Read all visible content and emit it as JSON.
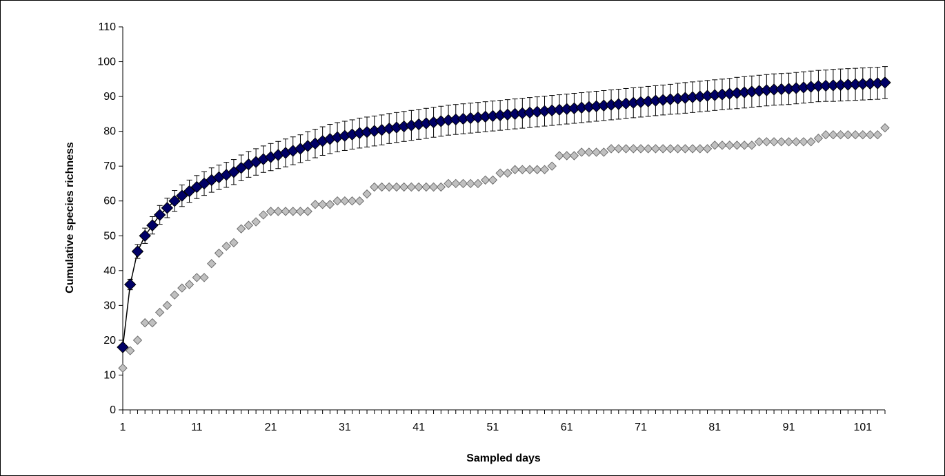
{
  "chart_data": {
    "type": "scatter",
    "xlabel": "Sampled days",
    "ylabel": "Cumulative species richness",
    "xlim": [
      1,
      104
    ],
    "ylim": [
      0,
      110
    ],
    "x_ticks": [
      "1",
      "11",
      "21",
      "31",
      "41",
      "51",
      "61",
      "71",
      "81",
      "91",
      "101"
    ],
    "y_ticks": [
      "0",
      "10",
      "20",
      "30",
      "40",
      "50",
      "60",
      "70",
      "80",
      "90",
      "100",
      "110"
    ],
    "grid": false,
    "legend": "none",
    "series": [
      {
        "marker": "diamond",
        "line": true,
        "error_bars": true,
        "color": "#000066",
        "line_color": "#000000",
        "x": [
          1,
          2,
          3,
          4,
          5,
          6,
          7,
          8,
          9,
          10,
          11,
          12,
          13,
          14,
          15,
          16,
          17,
          18,
          19,
          20,
          21,
          22,
          23,
          24,
          25,
          26,
          27,
          28,
          29,
          30,
          31,
          32,
          33,
          34,
          35,
          36,
          37,
          38,
          39,
          40,
          41,
          42,
          43,
          44,
          45,
          46,
          47,
          48,
          49,
          50,
          51,
          52,
          53,
          54,
          55,
          56,
          57,
          58,
          59,
          60,
          61,
          62,
          63,
          64,
          65,
          66,
          67,
          68,
          69,
          70,
          71,
          72,
          73,
          74,
          75,
          76,
          77,
          78,
          79,
          80,
          81,
          82,
          83,
          84,
          85,
          86,
          87,
          88,
          89,
          90,
          91,
          92,
          93,
          94,
          95,
          96,
          97,
          98,
          99,
          100,
          101,
          102,
          103,
          104
        ],
        "y": [
          18,
          36,
          45.5,
          50,
          53,
          56,
          58,
          60,
          61.5,
          62.8,
          64,
          65,
          66,
          66.8,
          67.5,
          68.3,
          69.5,
          70.5,
          71.2,
          72,
          72.6,
          73.2,
          73.8,
          74.4,
          75,
          75.8,
          76.5,
          77.2,
          77.8,
          78.3,
          78.7,
          79.1,
          79.5,
          79.8,
          80.1,
          80.4,
          80.8,
          81.1,
          81.4,
          81.7,
          82,
          82.3,
          82.6,
          82.9,
          83.2,
          83.4,
          83.6,
          83.8,
          84,
          84.2,
          84.4,
          84.6,
          84.8,
          85,
          85.2,
          85.4,
          85.6,
          85.8,
          86,
          86.2,
          86.4,
          86.6,
          86.8,
          87,
          87.2,
          87.4,
          87.6,
          87.8,
          88,
          88.2,
          88.4,
          88.6,
          88.8,
          89,
          89.2,
          89.4,
          89.6,
          89.8,
          90,
          90.2,
          90.4,
          90.6,
          90.8,
          91,
          91.2,
          91.4,
          91.6,
          91.8,
          92,
          92.1,
          92.2,
          92.4,
          92.6,
          92.8,
          93,
          93.1,
          93.2,
          93.3,
          93.4,
          93.5,
          93.6,
          93.7,
          93.8,
          94
        ],
        "err": [
          0.3,
          1.5,
          2,
          2.2,
          2.5,
          2.7,
          2.8,
          3,
          3.1,
          3.2,
          3.3,
          3.4,
          3.5,
          3.5,
          3.6,
          3.6,
          3.7,
          3.7,
          3.8,
          3.8,
          3.9,
          3.9,
          4,
          4,
          4,
          4.1,
          4.1,
          4.1,
          4.2,
          4.2,
          4.2,
          4.2,
          4.3,
          4.3,
          4.3,
          4.3,
          4.3,
          4.3,
          4.3,
          4.3,
          4.3,
          4.3,
          4.3,
          4.3,
          4.3,
          4.3,
          4.3,
          4.3,
          4.3,
          4.3,
          4.3,
          4.3,
          4.3,
          4.3,
          4.3,
          4.3,
          4.3,
          4.3,
          4.3,
          4.3,
          4.3,
          4.3,
          4.3,
          4.3,
          4.3,
          4.3,
          4.3,
          4.3,
          4.3,
          4.3,
          4.3,
          4.3,
          4.3,
          4.3,
          4.3,
          4.4,
          4.4,
          4.4,
          4.4,
          4.4,
          4.4,
          4.4,
          4.4,
          4.5,
          4.5,
          4.5,
          4.5,
          4.5,
          4.5,
          4.5,
          4.5,
          4.5,
          4.5,
          4.5,
          4.5,
          4.5,
          4.6,
          4.6,
          4.6,
          4.6,
          4.6,
          4.6,
          4.6,
          4.6
        ]
      },
      {
        "marker": "diamond",
        "line": false,
        "error_bars": false,
        "color": "#c0c0c0",
        "x": [
          1,
          2,
          3,
          4,
          5,
          6,
          7,
          8,
          9,
          10,
          11,
          12,
          13,
          14,
          15,
          16,
          17,
          18,
          19,
          20,
          21,
          22,
          23,
          24,
          25,
          26,
          27,
          28,
          29,
          30,
          31,
          32,
          33,
          34,
          35,
          36,
          37,
          38,
          39,
          40,
          41,
          42,
          43,
          44,
          45,
          46,
          47,
          48,
          49,
          50,
          51,
          52,
          53,
          54,
          55,
          56,
          57,
          58,
          59,
          60,
          61,
          62,
          63,
          64,
          65,
          66,
          67,
          68,
          69,
          70,
          71,
          72,
          73,
          74,
          75,
          76,
          77,
          78,
          79,
          80,
          81,
          82,
          83,
          84,
          85,
          86,
          87,
          88,
          89,
          90,
          91,
          92,
          93,
          94,
          95,
          96,
          97,
          98,
          99,
          100,
          101,
          102,
          103,
          104
        ],
        "y": [
          12,
          17,
          20,
          25,
          25,
          28,
          30,
          33,
          35,
          36,
          38,
          38,
          42,
          45,
          47,
          48,
          52,
          53,
          54,
          56,
          57,
          57,
          57,
          57,
          57,
          57,
          59,
          59,
          59,
          60,
          60,
          60,
          60,
          62,
          64,
          64,
          64,
          64,
          64,
          64,
          64,
          64,
          64,
          64,
          65,
          65,
          65,
          65,
          65,
          66,
          66,
          68,
          68,
          69,
          69,
          69,
          69,
          69,
          70,
          73,
          73,
          73,
          74,
          74,
          74,
          74,
          75,
          75,
          75,
          75,
          75,
          75,
          75,
          75,
          75,
          75,
          75,
          75,
          75,
          75,
          76,
          76,
          76,
          76,
          76,
          76,
          77,
          77,
          77,
          77,
          77,
          77,
          77,
          77,
          78,
          79,
          79,
          79,
          79,
          79,
          79,
          79,
          79,
          81
        ]
      }
    ]
  }
}
